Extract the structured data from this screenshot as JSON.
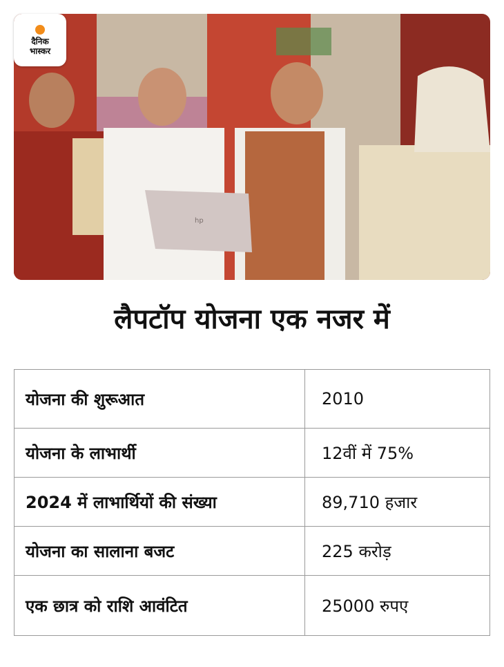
{
  "logo": {
    "line1": "दैनिक",
    "line2": "भास्कर",
    "accent_color": "#f28c1a"
  },
  "photo": {
    "laptop_brand": "hp"
  },
  "heading": "लैपटॉप योजना एक नजर में",
  "table": {
    "rows": [
      {
        "label": "योजना की शुरूआत",
        "value": "2010"
      },
      {
        "label": "योजना के लाभार्थी",
        "value": "12वीं में 75%"
      },
      {
        "label": "2024 में लाभार्थियों की संख्या",
        "value": "89,710 हजार"
      },
      {
        "label": "योजना का सालाना बजट",
        "value": "225 करोड़"
      },
      {
        "label": "एक छात्र को राशि आवंटित",
        "value": "25000 रुपए"
      }
    ]
  }
}
